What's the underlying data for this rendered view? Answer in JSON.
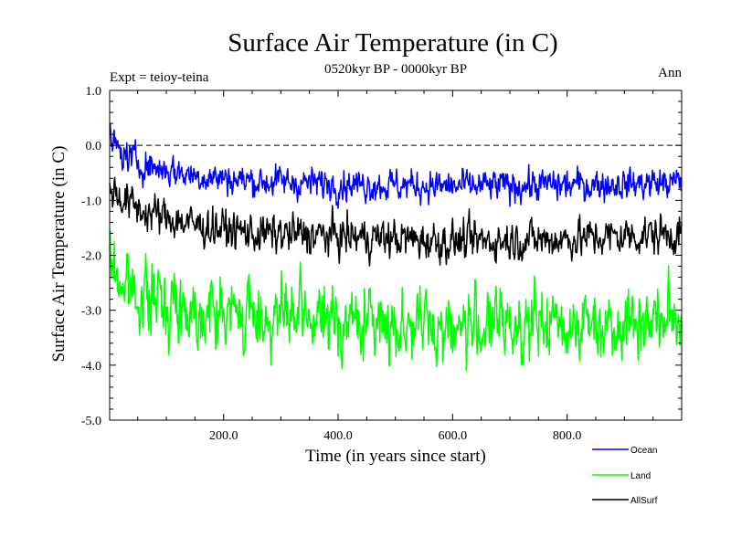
{
  "chart_data": {
    "type": "line",
    "title": "Surface Air Temperature (in C)",
    "subtitle": "0520kyr BP - 0000kyr BP",
    "left_annotation": "Expt = teioy-teina",
    "right_annotation": "Ann",
    "xlabel": "Time (in years since start)",
    "ylabel": "Surface Air Temperature (in C)",
    "xlim": [
      1,
      1000
    ],
    "ylim": [
      -5.0,
      1.0
    ],
    "xticks": [
      200,
      400,
      600,
      800
    ],
    "xtick_labels": [
      "200.0",
      "400.0",
      "600.0",
      "800.0"
    ],
    "yticks": [
      1.0,
      0.0,
      -1.0,
      -2.0,
      -3.0,
      -4.0,
      -5.0
    ],
    "ytick_labels": [
      "1.0",
      "0.0",
      "-1.0",
      "-2.0",
      "-3.0",
      "-4.0",
      "-5.0"
    ],
    "reference_line": 0.0,
    "series_noise_seed": 7,
    "series": [
      {
        "name": "Ocean",
        "color": "#0000ff",
        "noise": 0.13,
        "trend": [
          [
            1,
            0.15
          ],
          [
            20,
            -0.15
          ],
          [
            60,
            -0.35
          ],
          [
            150,
            -0.55
          ],
          [
            250,
            -0.65
          ],
          [
            400,
            -0.7
          ],
          [
            600,
            -0.75
          ],
          [
            800,
            -0.72
          ],
          [
            1000,
            -0.68
          ]
        ]
      },
      {
        "name": "Land",
        "color": "#00ff00",
        "noise": 0.28,
        "trend": [
          [
            1,
            -2.1
          ],
          [
            20,
            -2.5
          ],
          [
            60,
            -2.75
          ],
          [
            150,
            -3.0
          ],
          [
            250,
            -3.1
          ],
          [
            400,
            -3.2
          ],
          [
            600,
            -3.3
          ],
          [
            700,
            -3.25
          ],
          [
            800,
            -3.25
          ],
          [
            1000,
            -3.15
          ]
        ]
      },
      {
        "name": "AllSurf",
        "color": "#000000",
        "noise": 0.16,
        "trend": [
          [
            1,
            -0.75
          ],
          [
            20,
            -0.95
          ],
          [
            60,
            -1.2
          ],
          [
            150,
            -1.45
          ],
          [
            250,
            -1.6
          ],
          [
            400,
            -1.65
          ],
          [
            600,
            -1.75
          ],
          [
            800,
            -1.7
          ],
          [
            1000,
            -1.6
          ]
        ]
      }
    ]
  }
}
